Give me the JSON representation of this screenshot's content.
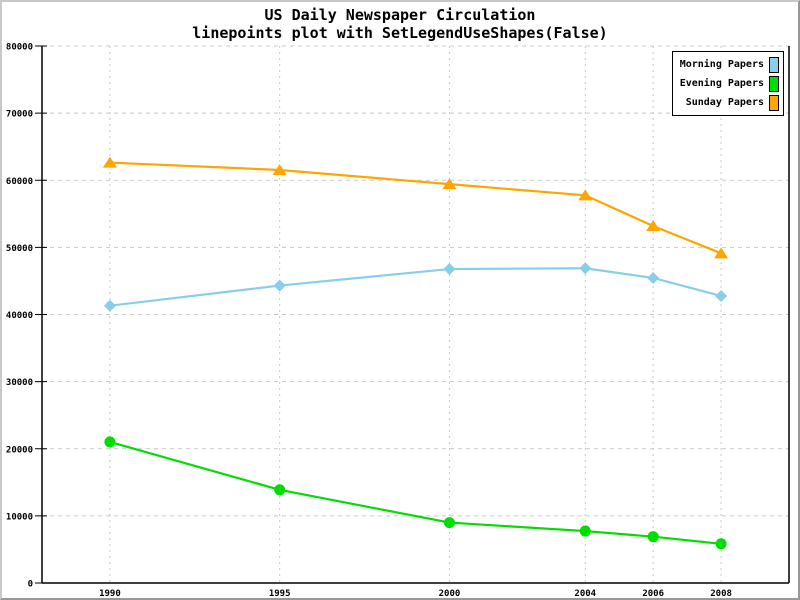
{
  "window": {
    "background": "#ffffff",
    "border_light": "#c8c8c8",
    "border_dark": "#989898"
  },
  "title": {
    "line1": "US Daily Newspaper Circulation",
    "line2": "linepoints plot with SetLegendUseShapes(False)"
  },
  "legend": {
    "items": [
      {
        "label": "Morning Papers",
        "color": "#87CEEB"
      },
      {
        "label": "Evening Papers",
        "color": "#00DD00"
      },
      {
        "label": "Sunday Papers",
        "color": "#FFA500"
      }
    ]
  },
  "chart_data": {
    "type": "line",
    "variant": "linepoints",
    "title": "US Daily Newspaper Circulation",
    "subtitle": "linepoints plot with SetLegendUseShapes(False)",
    "x": [
      1990,
      1995,
      2000,
      2004,
      2006,
      2008
    ],
    "x_tick_labels": [
      "1990",
      "1995",
      "2000",
      "2004",
      "2006",
      "2008"
    ],
    "series": [
      {
        "name": "Morning Papers",
        "color": "#87CEEB",
        "marker": "diamond",
        "values": [
          41311,
          44310,
          46772,
          46887,
          45441,
          42757
        ]
      },
      {
        "name": "Evening Papers",
        "color": "#00DD00",
        "marker": "circle",
        "values": [
          21017,
          13883,
          9000,
          7738,
          6900,
          5840
        ]
      },
      {
        "name": "Sunday Papers",
        "color": "#FFA500",
        "marker": "triangle-up",
        "values": [
          62635,
          61529,
          59421,
          57754,
          53179,
          49115
        ]
      }
    ],
    "xlim": [
      1988,
      2010
    ],
    "ylim": [
      0,
      80000
    ],
    "y_ticks": [
      0,
      10000,
      20000,
      30000,
      40000,
      50000,
      60000,
      70000,
      80000
    ],
    "y_tick_labels": [
      "0",
      "10000",
      "20000",
      "30000",
      "40000",
      "50000",
      "60000",
      "70000",
      "80000"
    ],
    "grid": true,
    "grid_color": "#c8c8c8",
    "axis_color": "#000000",
    "text_color": "#000000",
    "legend_position": "top-right"
  }
}
